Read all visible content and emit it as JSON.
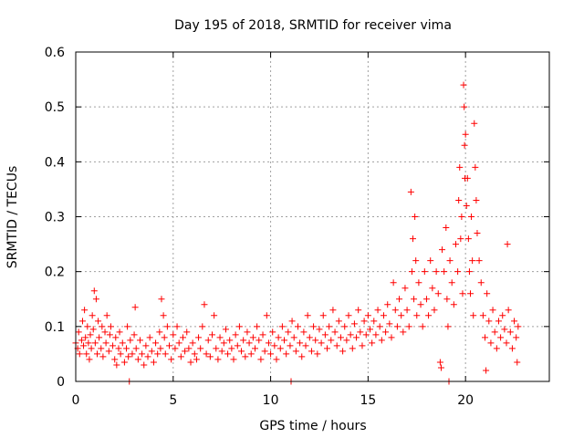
{
  "chart_data": {
    "type": "scatter",
    "title": "Day 195 of 2018, SRMTID for receiver vima",
    "xlabel": "GPS time / hours",
    "ylabel": "SRMTID / TECUs",
    "xlim": [
      0,
      24.3
    ],
    "ylim": [
      0,
      0.6
    ],
    "grid": true,
    "x_ticks": [
      0,
      5,
      10,
      15,
      20
    ],
    "y_ticks": [
      0,
      0.1,
      0.2,
      0.3,
      0.4,
      0.5,
      0.6
    ],
    "x_tick_labels": [
      "0",
      "5",
      "10",
      "15",
      "20"
    ],
    "y_tick_labels": [
      "0",
      "0.1",
      "0.2",
      "0.3",
      "0.4",
      "0.5",
      "0.6"
    ],
    "marker": "+",
    "color": "#ff0000",
    "series": [
      {
        "name": "SRMTID",
        "points": [
          [
            0.0,
            0.07
          ],
          [
            0.1,
            0.06
          ],
          [
            0.15,
            0.09
          ],
          [
            0.2,
            0.05
          ],
          [
            0.3,
            0.075
          ],
          [
            0.35,
            0.11
          ],
          [
            0.4,
            0.065
          ],
          [
            0.45,
            0.13
          ],
          [
            0.5,
            0.08
          ],
          [
            0.55,
            0.05
          ],
          [
            0.6,
            0.1
          ],
          [
            0.65,
            0.07
          ],
          [
            0.7,
            0.04
          ],
          [
            0.75,
            0.085
          ],
          [
            0.8,
            0.06
          ],
          [
            0.85,
            0.12
          ],
          [
            0.9,
            0.095
          ],
          [
            0.95,
            0.165
          ],
          [
            1.0,
            0.07
          ],
          [
            1.05,
            0.15
          ],
          [
            1.1,
            0.05
          ],
          [
            1.15,
            0.11
          ],
          [
            1.2,
            0.08
          ],
          [
            1.3,
            0.06
          ],
          [
            1.35,
            0.1
          ],
          [
            1.4,
            0.045
          ],
          [
            1.5,
            0.09
          ],
          [
            1.55,
            0.07
          ],
          [
            1.6,
            0.12
          ],
          [
            1.7,
            0.055
          ],
          [
            1.75,
            0.085
          ],
          [
            1.8,
            0.1
          ],
          [
            1.9,
            0.065
          ],
          [
            2.0,
            0.04
          ],
          [
            2.05,
            0.08
          ],
          [
            2.1,
            0.03
          ],
          [
            2.2,
            0.06
          ],
          [
            2.25,
            0.09
          ],
          [
            2.3,
            0.05
          ],
          [
            2.4,
            0.07
          ],
          [
            2.5,
            0.035
          ],
          [
            2.6,
            0.06
          ],
          [
            2.65,
            0.1
          ],
          [
            2.7,
            0.045
          ],
          [
            2.75,
            0.0
          ],
          [
            2.8,
            0.075
          ],
          [
            2.9,
            0.05
          ],
          [
            3.0,
            0.085
          ],
          [
            3.05,
            0.135
          ],
          [
            3.1,
            0.06
          ],
          [
            3.2,
            0.04
          ],
          [
            3.3,
            0.075
          ],
          [
            3.4,
            0.05
          ],
          [
            3.5,
            0.03
          ],
          [
            3.6,
            0.065
          ],
          [
            3.7,
            0.045
          ],
          [
            3.8,
            0.08
          ],
          [
            3.9,
            0.055
          ],
          [
            4.0,
            0.035
          ],
          [
            4.1,
            0.07
          ],
          [
            4.2,
            0.05
          ],
          [
            4.3,
            0.09
          ],
          [
            4.35,
            0.06
          ],
          [
            4.4,
            0.15
          ],
          [
            4.5,
            0.12
          ],
          [
            4.55,
            0.08
          ],
          [
            4.6,
            0.05
          ],
          [
            4.7,
            0.1
          ],
          [
            4.8,
            0.065
          ],
          [
            4.9,
            0.04
          ],
          [
            5.0,
            0.085
          ],
          [
            5.1,
            0.06
          ],
          [
            5.2,
            0.1
          ],
          [
            5.3,
            0.07
          ],
          [
            5.4,
            0.045
          ],
          [
            5.5,
            0.08
          ],
          [
            5.6,
            0.055
          ],
          [
            5.7,
            0.09
          ],
          [
            5.8,
            0.06
          ],
          [
            5.9,
            0.035
          ],
          [
            6.0,
            0.07
          ],
          [
            6.1,
            0.05
          ],
          [
            6.2,
            0.04
          ],
          [
            6.3,
            0.08
          ],
          [
            6.4,
            0.06
          ],
          [
            6.5,
            0.1
          ],
          [
            6.6,
            0.14
          ],
          [
            6.7,
            0.05
          ],
          [
            6.8,
            0.075
          ],
          [
            6.9,
            0.045
          ],
          [
            7.0,
            0.085
          ],
          [
            7.1,
            0.12
          ],
          [
            7.2,
            0.06
          ],
          [
            7.3,
            0.04
          ],
          [
            7.4,
            0.08
          ],
          [
            7.5,
            0.055
          ],
          [
            7.6,
            0.07
          ],
          [
            7.7,
            0.095
          ],
          [
            7.8,
            0.05
          ],
          [
            7.9,
            0.075
          ],
          [
            8.0,
            0.06
          ],
          [
            8.1,
            0.04
          ],
          [
            8.2,
            0.085
          ],
          [
            8.3,
            0.065
          ],
          [
            8.4,
            0.1
          ],
          [
            8.5,
            0.055
          ],
          [
            8.6,
            0.075
          ],
          [
            8.7,
            0.045
          ],
          [
            8.8,
            0.09
          ],
          [
            8.9,
            0.07
          ],
          [
            9.0,
            0.05
          ],
          [
            9.1,
            0.08
          ],
          [
            9.2,
            0.06
          ],
          [
            9.3,
            0.1
          ],
          [
            9.4,
            0.075
          ],
          [
            9.5,
            0.04
          ],
          [
            9.6,
            0.085
          ],
          [
            9.7,
            0.055
          ],
          [
            9.8,
            0.12
          ],
          [
            9.9,
            0.07
          ],
          [
            10.0,
            0.05
          ],
          [
            10.1,
            0.09
          ],
          [
            10.2,
            0.065
          ],
          [
            10.3,
            0.04
          ],
          [
            10.4,
            0.08
          ],
          [
            10.5,
            0.06
          ],
          [
            10.6,
            0.1
          ],
          [
            10.7,
            0.075
          ],
          [
            10.8,
            0.05
          ],
          [
            10.9,
            0.09
          ],
          [
            11.0,
            0.065
          ],
          [
            11.05,
            0.0
          ],
          [
            11.1,
            0.11
          ],
          [
            11.2,
            0.08
          ],
          [
            11.3,
            0.055
          ],
          [
            11.4,
            0.1
          ],
          [
            11.5,
            0.07
          ],
          [
            11.6,
            0.045
          ],
          [
            11.7,
            0.09
          ],
          [
            11.8,
            0.065
          ],
          [
            11.9,
            0.12
          ],
          [
            12.0,
            0.08
          ],
          [
            12.1,
            0.055
          ],
          [
            12.2,
            0.1
          ],
          [
            12.3,
            0.075
          ],
          [
            12.4,
            0.05
          ],
          [
            12.5,
            0.095
          ],
          [
            12.6,
            0.07
          ],
          [
            12.7,
            0.12
          ],
          [
            12.8,
            0.085
          ],
          [
            12.9,
            0.06
          ],
          [
            13.0,
            0.1
          ],
          [
            13.1,
            0.075
          ],
          [
            13.2,
            0.13
          ],
          [
            13.3,
            0.09
          ],
          [
            13.4,
            0.065
          ],
          [
            13.5,
            0.11
          ],
          [
            13.6,
            0.08
          ],
          [
            13.7,
            0.055
          ],
          [
            13.8,
            0.1
          ],
          [
            13.9,
            0.075
          ],
          [
            14.0,
            0.12
          ],
          [
            14.1,
            0.085
          ],
          [
            14.2,
            0.06
          ],
          [
            14.3,
            0.105
          ],
          [
            14.4,
            0.08
          ],
          [
            14.5,
            0.13
          ],
          [
            14.6,
            0.09
          ],
          [
            14.7,
            0.065
          ],
          [
            14.8,
            0.11
          ],
          [
            14.9,
            0.085
          ],
          [
            15.0,
            0.12
          ],
          [
            15.1,
            0.095
          ],
          [
            15.2,
            0.07
          ],
          [
            15.3,
            0.11
          ],
          [
            15.4,
            0.085
          ],
          [
            15.5,
            0.13
          ],
          [
            15.6,
            0.1
          ],
          [
            15.7,
            0.075
          ],
          [
            15.8,
            0.12
          ],
          [
            15.9,
            0.09
          ],
          [
            16.0,
            0.14
          ],
          [
            16.1,
            0.105
          ],
          [
            16.2,
            0.08
          ],
          [
            16.3,
            0.18
          ],
          [
            16.4,
            0.13
          ],
          [
            16.5,
            0.1
          ],
          [
            16.6,
            0.15
          ],
          [
            16.7,
            0.12
          ],
          [
            16.8,
            0.09
          ],
          [
            16.9,
            0.17
          ],
          [
            17.0,
            0.13
          ],
          [
            17.1,
            0.1
          ],
          [
            17.2,
            0.345
          ],
          [
            17.25,
            0.2
          ],
          [
            17.3,
            0.26
          ],
          [
            17.35,
            0.15
          ],
          [
            17.4,
            0.3
          ],
          [
            17.45,
            0.22
          ],
          [
            17.5,
            0.12
          ],
          [
            17.6,
            0.18
          ],
          [
            17.7,
            0.14
          ],
          [
            17.8,
            0.1
          ],
          [
            17.9,
            0.2
          ],
          [
            18.0,
            0.15
          ],
          [
            18.1,
            0.12
          ],
          [
            18.2,
            0.22
          ],
          [
            18.3,
            0.17
          ],
          [
            18.4,
            0.13
          ],
          [
            18.5,
            0.2
          ],
          [
            18.6,
            0.16
          ],
          [
            18.7,
            0.035
          ],
          [
            18.75,
            0.025
          ],
          [
            18.8,
            0.24
          ],
          [
            18.9,
            0.2
          ],
          [
            19.0,
            0.28
          ],
          [
            19.05,
            0.15
          ],
          [
            19.1,
            0.1
          ],
          [
            19.15,
            0.0
          ],
          [
            19.2,
            0.22
          ],
          [
            19.3,
            0.18
          ],
          [
            19.4,
            0.14
          ],
          [
            19.5,
            0.25
          ],
          [
            19.6,
            0.2
          ],
          [
            19.65,
            0.33
          ],
          [
            19.7,
            0.39
          ],
          [
            19.75,
            0.26
          ],
          [
            19.8,
            0.3
          ],
          [
            19.85,
            0.16
          ],
          [
            19.9,
            0.54
          ],
          [
            19.93,
            0.5
          ],
          [
            19.95,
            0.43
          ],
          [
            19.97,
            0.37
          ],
          [
            20.0,
            0.45
          ],
          [
            20.05,
            0.32
          ],
          [
            20.1,
            0.37
          ],
          [
            20.15,
            0.26
          ],
          [
            20.2,
            0.2
          ],
          [
            20.25,
            0.16
          ],
          [
            20.3,
            0.3
          ],
          [
            20.35,
            0.22
          ],
          [
            20.4,
            0.12
          ],
          [
            20.45,
            0.47
          ],
          [
            20.5,
            0.39
          ],
          [
            20.55,
            0.33
          ],
          [
            20.6,
            0.27
          ],
          [
            20.7,
            0.22
          ],
          [
            20.8,
            0.18
          ],
          [
            20.9,
            0.12
          ],
          [
            21.0,
            0.08
          ],
          [
            21.05,
            0.02
          ],
          [
            21.1,
            0.16
          ],
          [
            21.2,
            0.11
          ],
          [
            21.3,
            0.07
          ],
          [
            21.4,
            0.13
          ],
          [
            21.5,
            0.09
          ],
          [
            21.6,
            0.06
          ],
          [
            21.7,
            0.11
          ],
          [
            21.8,
            0.08
          ],
          [
            21.9,
            0.12
          ],
          [
            22.0,
            0.095
          ],
          [
            22.1,
            0.07
          ],
          [
            22.15,
            0.25
          ],
          [
            22.2,
            0.13
          ],
          [
            22.3,
            0.09
          ],
          [
            22.4,
            0.06
          ],
          [
            22.5,
            0.11
          ],
          [
            22.6,
            0.08
          ],
          [
            22.65,
            0.035
          ],
          [
            22.7,
            0.1
          ]
        ]
      }
    ]
  }
}
